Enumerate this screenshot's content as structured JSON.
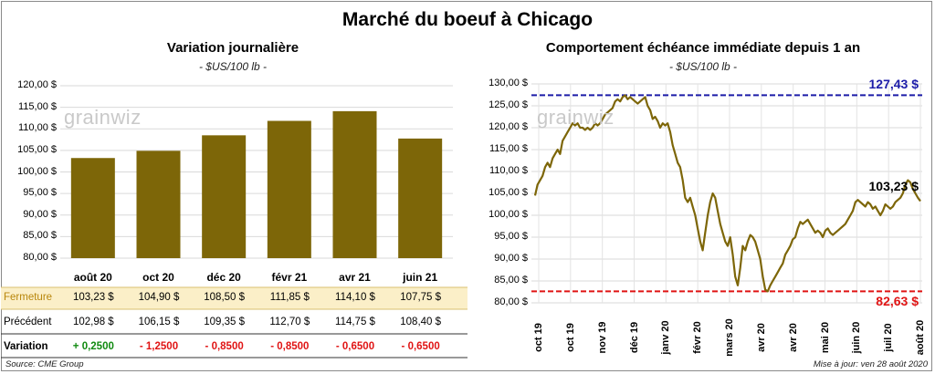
{
  "title": "Marché du boeuf à Chicago",
  "left": {
    "subtitle": "Variation  journalière",
    "unit": "- $US/100 lb -",
    "watermark": "grainwiz",
    "table": {
      "row_labels": [
        "Fermeture",
        "Précédent",
        "Variation"
      ],
      "fermeture": [
        "103,23  $",
        "104,90  $",
        "108,50  $",
        "111,85  $",
        "114,10  $",
        "107,75  $"
      ],
      "precedent": [
        "102,98  $",
        "106,15  $",
        "109,35  $",
        "112,70  $",
        "114,75  $",
        "108,40  $"
      ],
      "variation": [
        "+ 0,2500",
        "- 1,2500",
        "- 0,8500",
        "- 0,8500",
        "- 0,6500",
        "- 0,6500"
      ]
    }
  },
  "right": {
    "subtitle": "Comportement  échéance immédiate depuis 1 an",
    "unit": "- $US/100 lb -",
    "watermark": "grainwiz",
    "high_label": "127,43 $",
    "low_label": "82,63 $",
    "last_label": "103,23 $"
  },
  "footer": {
    "source": "Source: CME Group",
    "updated": "Mise à jour: ven 28 août 2020"
  },
  "colors": {
    "bar": "#7d6608",
    "line": "#7d6608",
    "high_line": "#1c1ca8",
    "low_line": "#e01414",
    "highlight_row": "#fbefc8",
    "positive": "#108a10",
    "negative": "#e01414"
  },
  "chart_data": [
    {
      "type": "bar",
      "categories": [
        "août 20",
        "oct 20",
        "déc 20",
        "févr 21",
        "avr 21",
        "juin 21"
      ],
      "values": [
        103.23,
        104.9,
        108.5,
        111.85,
        114.1,
        107.75
      ],
      "ylim": [
        80,
        120
      ],
      "yticks": [
        "80,00 $",
        "85,00 $",
        "90,00 $",
        "95,00 $",
        "100,00 $",
        "105,00 $",
        "110,00 $",
        "115,00 $",
        "120,00 $"
      ],
      "grid": true
    },
    {
      "type": "line",
      "ylim": [
        80,
        130
      ],
      "yticks": [
        "80,00 $",
        "85,00 $",
        "90,00 $",
        "95,00 $",
        "100,00 $",
        "105,00 $",
        "110,00 $",
        "115,00 $",
        "120,00 $",
        "125,00 $",
        "130,00 $"
      ],
      "xticks": [
        "oct 19",
        "oct 19",
        "nov 19",
        "déc 19",
        "janv 20",
        "févr 20",
        "mars 20",
        "avr 20",
        "avr 20",
        "mai 20",
        "juin 20",
        "juil 20",
        "août 20"
      ],
      "max": 127.43,
      "min": 82.63,
      "last": 103.23,
      "grid": true,
      "values": [
        104.5,
        107,
        108,
        109,
        111,
        112,
        111,
        113,
        114,
        115,
        114,
        117,
        118,
        119,
        120,
        121,
        120.5,
        121,
        120,
        120,
        119.5,
        120,
        119.5,
        120,
        121,
        120.5,
        121,
        122,
        123,
        123.5,
        124,
        124.5,
        126,
        126.5,
        126,
        127,
        127.4,
        126.5,
        127,
        126.5,
        126,
        125.5,
        126,
        126.5,
        127,
        125,
        124,
        122,
        122.5,
        121.5,
        120,
        121,
        120.5,
        121,
        119,
        116,
        114,
        112,
        111,
        108,
        104,
        103,
        104,
        102,
        100,
        97,
        94,
        92,
        96,
        100,
        103,
        105,
        104,
        101,
        98,
        96,
        94,
        93,
        95,
        91,
        86,
        84,
        88,
        93,
        92,
        94,
        95.5,
        95,
        94,
        92,
        90,
        86,
        83,
        82.63,
        84,
        85,
        86,
        87,
        88,
        89,
        91,
        92,
        93,
        94.5,
        95,
        97,
        98.5,
        98,
        98.5,
        99,
        98,
        97,
        96,
        96.5,
        96,
        95,
        96.5,
        97,
        96,
        95.5,
        96,
        96.5,
        97,
        97.5,
        98,
        99,
        100,
        101,
        103,
        103.5,
        103,
        102.5,
        102,
        103,
        102.5,
        101.5,
        102,
        101,
        100,
        101,
        102.5,
        102,
        101.5,
        102,
        103,
        103.5,
        104,
        105,
        107,
        108,
        107.5,
        106,
        105,
        104,
        103.23
      ]
    }
  ]
}
